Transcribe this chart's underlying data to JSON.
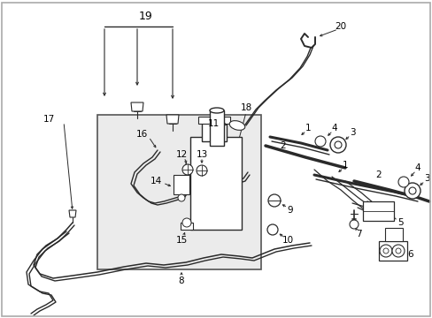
{
  "bg_color": "#ffffff",
  "line_color": "#2a2a2a",
  "box_fill": "#ebebeb",
  "fig_width": 4.89,
  "fig_height": 3.6,
  "dpi": 100
}
